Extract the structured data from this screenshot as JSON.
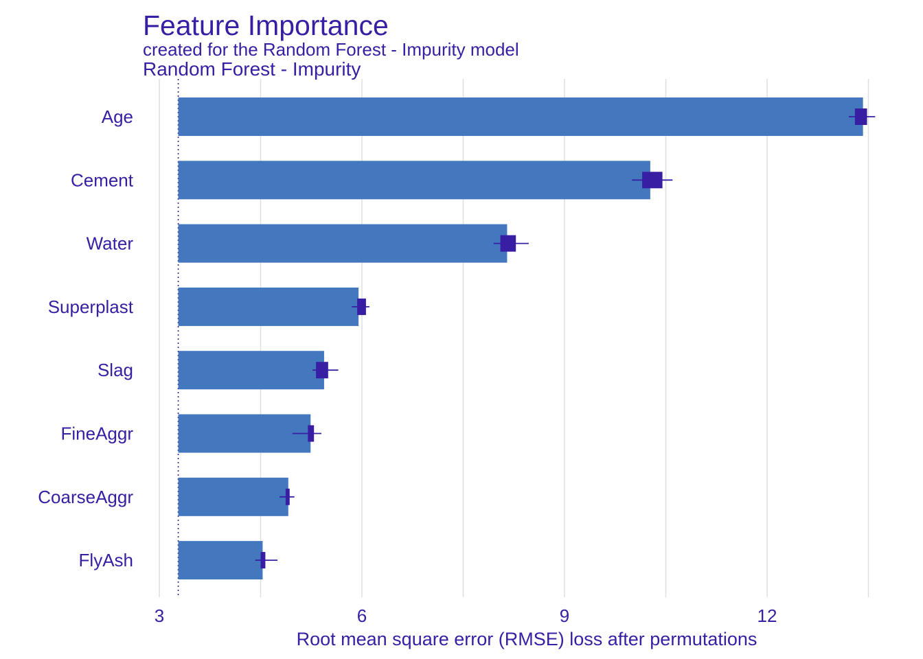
{
  "chart_data": {
    "type": "bar",
    "orientation": "horizontal",
    "title": "Feature Importance",
    "subtitle": "created for the Random Forest - Impurity model",
    "panel_title": "Random Forest - Impurity",
    "xlabel": "Root mean square error (RMSE) loss after permutations",
    "ylabel": "",
    "xlim": [
      2.8,
      13.5
    ],
    "x_ticks": [
      3,
      6,
      9,
      12
    ],
    "baseline": 3.28,
    "grid": true,
    "categories": [
      "Age",
      "Cement",
      "Water",
      "Superplast",
      "Slag",
      "FineAggr",
      "CoarseAggr",
      "FlyAsh"
    ],
    "values": [
      13.42,
      10.27,
      8.15,
      5.95,
      5.44,
      5.24,
      4.91,
      4.53
    ],
    "boxplots": [
      {
        "min": 13.21,
        "q1": 13.3,
        "q3": 13.48,
        "max": 13.6
      },
      {
        "min": 10.0,
        "q1": 10.15,
        "q3": 10.45,
        "max": 10.6
      },
      {
        "min": 7.95,
        "q1": 8.05,
        "q3": 8.28,
        "max": 8.47
      },
      {
        "min": 5.85,
        "q1": 5.93,
        "q3": 6.06,
        "max": 6.11
      },
      {
        "min": 5.27,
        "q1": 5.32,
        "q3": 5.5,
        "max": 5.65
      },
      {
        "min": 4.97,
        "q1": 5.2,
        "q3": 5.29,
        "max": 5.4
      },
      {
        "min": 4.78,
        "q1": 4.87,
        "q3": 4.93,
        "max": 5.0
      },
      {
        "min": 4.42,
        "q1": 4.5,
        "q3": 4.57,
        "max": 4.75
      }
    ],
    "colors": {
      "bar": "#4378bf",
      "box": "#371ea3",
      "text": "#371ea3",
      "grid": "#dfdfe3"
    }
  }
}
